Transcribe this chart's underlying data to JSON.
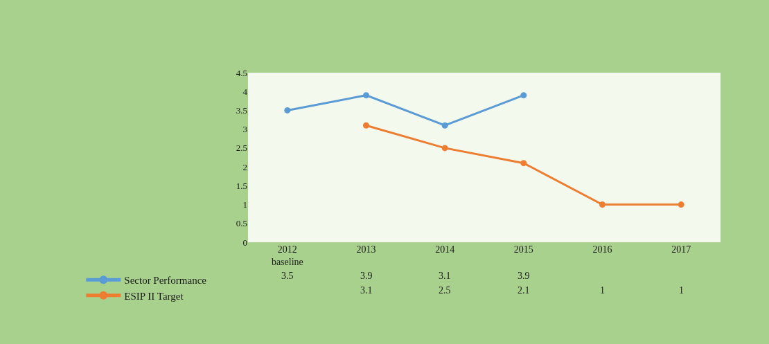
{
  "chart_data": {
    "type": "line",
    "categories": [
      "2012\nbaseline",
      "2013",
      "2014",
      "2015",
      "2016",
      "2017"
    ],
    "series": [
      {
        "name": "Sector Performance",
        "color": "#5b9bd5",
        "values": [
          3.5,
          3.9,
          3.1,
          3.9,
          null,
          null
        ]
      },
      {
        "name": "ESIP II Target",
        "color": "#ed7d31",
        "values": [
          null,
          3.1,
          2.5,
          2.1,
          1,
          1
        ]
      }
    ],
    "ylim": [
      0,
      4.5
    ],
    "yticks": [
      0,
      0.5,
      1,
      1.5,
      2,
      2.5,
      3,
      3.5,
      4,
      4.5
    ],
    "marker": "circle",
    "line_style": "solid",
    "data_labels": true,
    "legend": "bottom left"
  }
}
